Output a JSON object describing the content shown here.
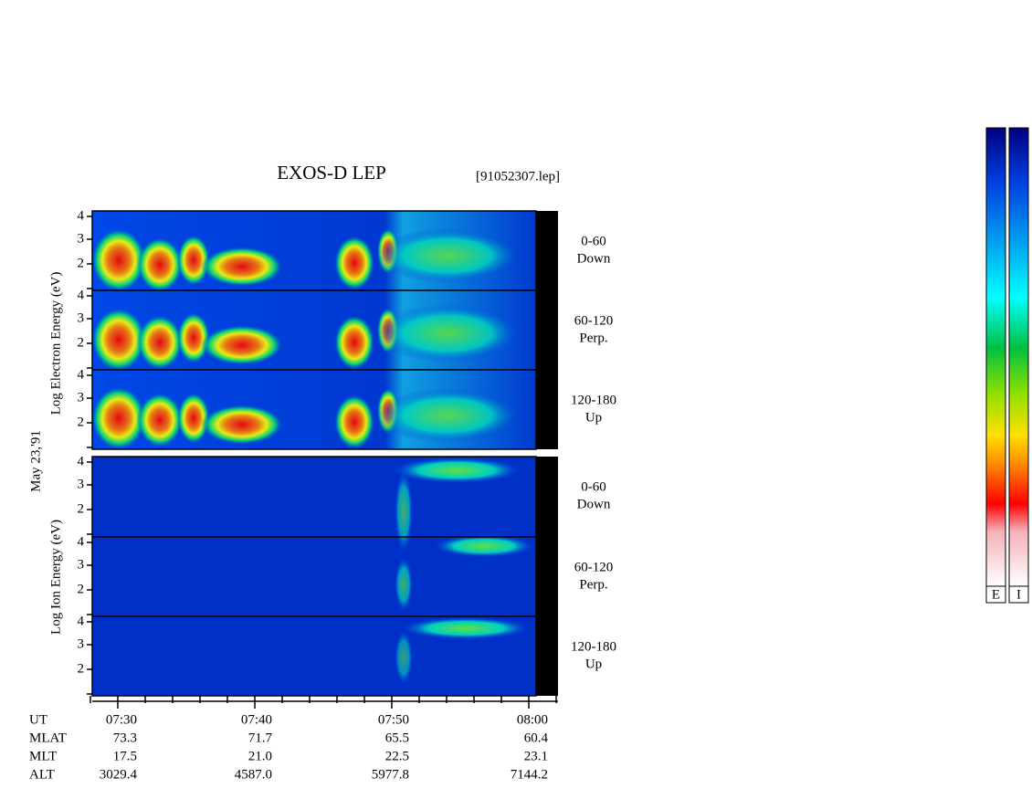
{
  "title": "EXOS-D LEP",
  "file": "[91052307.lep]",
  "date": "May 23,'91",
  "energy_ticks": [
    "2",
    "3",
    "4"
  ],
  "electron": {
    "ylabel": "Log  Electron  Energy (eV)",
    "panels": [
      {
        "angle": "0-60",
        "direction": "Down"
      },
      {
        "angle": "60-120",
        "direction": "Perp."
      },
      {
        "angle": "120-180",
        "direction": "Up"
      }
    ]
  },
  "ion": {
    "ylabel": "Log  Ion  Energy (eV)",
    "panels": [
      {
        "angle": "0-60",
        "direction": "Down"
      },
      {
        "angle": "60-120",
        "direction": "Perp."
      },
      {
        "angle": "120-180",
        "direction": "Up"
      }
    ]
  },
  "table": {
    "rows": [
      [
        "UT",
        "07:30",
        "07:40",
        "07:50",
        "08:00"
      ],
      [
        "MLAT",
        "73.3",
        "71.7",
        "65.5",
        "60.4"
      ],
      [
        "MLT",
        "17.5",
        "21.0",
        "22.5",
        "23.1"
      ],
      [
        "ALT",
        "3029.4",
        "4587.0",
        "5977.8",
        "7144.2"
      ]
    ]
  },
  "colorbars": [
    "E",
    "I"
  ]
}
